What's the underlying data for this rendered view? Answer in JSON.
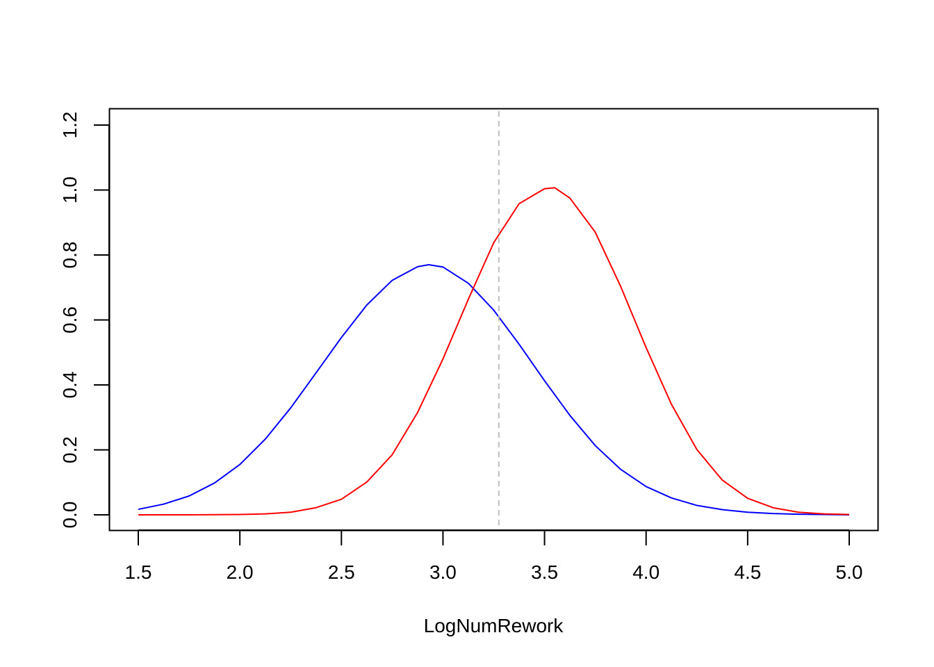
{
  "chart_data": {
    "type": "line",
    "title": "",
    "xlabel": "LogNumRework",
    "ylabel": "",
    "xlim": [
      1.5,
      5.0
    ],
    "ylim": [
      0.0,
      1.2
    ],
    "x_ticks": [
      1.5,
      2.0,
      2.5,
      3.0,
      3.5,
      4.0,
      4.5,
      5.0
    ],
    "x_tick_labels": [
      "1.5",
      "2.0",
      "2.5",
      "3.0",
      "3.5",
      "4.0",
      "4.5",
      "5.0"
    ],
    "y_ticks": [
      0.0,
      0.2,
      0.4,
      0.6,
      0.8,
      1.0,
      1.2
    ],
    "y_tick_labels": [
      "0.0",
      "0.2",
      "0.4",
      "0.6",
      "0.8",
      "1.0",
      "1.2"
    ],
    "grid": false,
    "legend": null,
    "vertical_reference_line": {
      "x": 3.275,
      "color": "#bebebe",
      "style": "dashed"
    },
    "series": [
      {
        "name": "blue density",
        "color": "#0000ff",
        "x": [
          1.5,
          1.625,
          1.75,
          1.875,
          2.0,
          2.125,
          2.25,
          2.375,
          2.5,
          2.625,
          2.75,
          2.875,
          2.93,
          3.0,
          3.125,
          3.25,
          3.375,
          3.5,
          3.625,
          3.75,
          3.875,
          4.0,
          4.125,
          4.25,
          4.375,
          4.5,
          4.625,
          4.75,
          4.875,
          5.0
        ],
        "values": [
          0.017,
          0.033,
          0.058,
          0.098,
          0.155,
          0.233,
          0.329,
          0.437,
          0.546,
          0.646,
          0.722,
          0.764,
          0.77,
          0.763,
          0.713,
          0.63,
          0.525,
          0.413,
          0.306,
          0.213,
          0.14,
          0.087,
          0.052,
          0.029,
          0.016,
          0.008,
          0.004,
          0.002,
          0.001,
          0.0
        ]
      },
      {
        "name": "red density",
        "color": "#ff0000",
        "x": [
          1.5,
          1.75,
          2.0,
          2.125,
          2.25,
          2.375,
          2.5,
          2.625,
          2.75,
          2.875,
          3.0,
          3.125,
          3.25,
          3.375,
          3.5,
          3.55,
          3.625,
          3.75,
          3.875,
          4.0,
          4.125,
          4.25,
          4.375,
          4.5,
          4.625,
          4.75,
          4.875,
          5.0
        ],
        "values": [
          0.0,
          0.0,
          0.001,
          0.003,
          0.008,
          0.022,
          0.048,
          0.101,
          0.185,
          0.315,
          0.48,
          0.664,
          0.838,
          0.958,
          1.004,
          1.007,
          0.975,
          0.87,
          0.703,
          0.515,
          0.34,
          0.201,
          0.107,
          0.051,
          0.022,
          0.008,
          0.003,
          0.001
        ]
      }
    ]
  }
}
